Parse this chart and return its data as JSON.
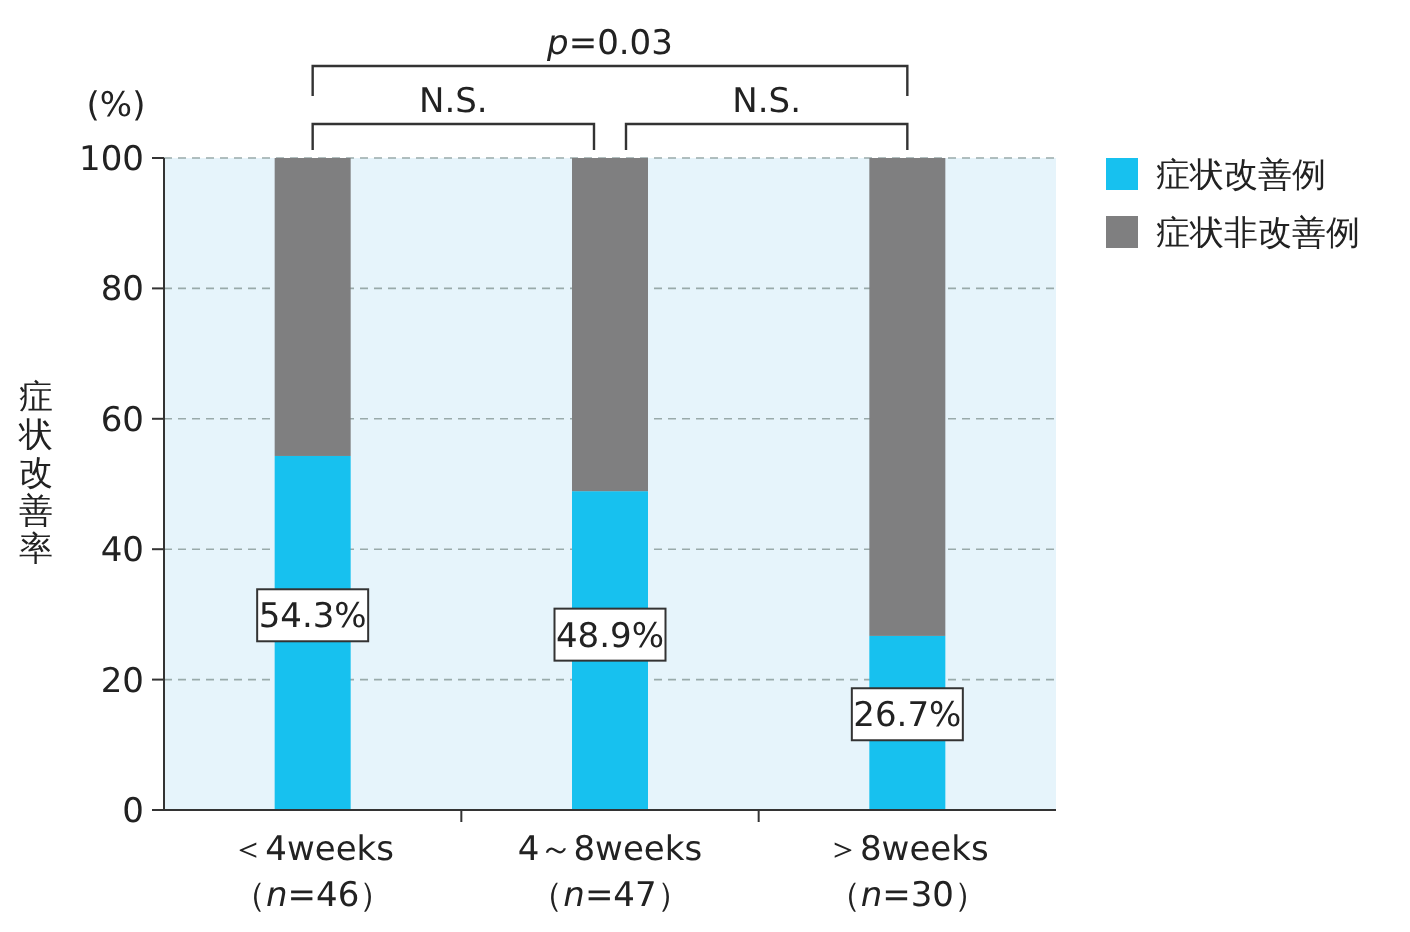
{
  "chart_data": {
    "type": "bar",
    "stacked": true,
    "ylabel": "症状改善率",
    "categories": [
      "＜4weeks\n（n=46）",
      "4～8weeks\n（n=47）",
      "＞8weeks\n（n=30）"
    ],
    "series": [
      {
        "name": "症状改善例",
        "color": "#17c1ef",
        "values": [
          54.3,
          48.9,
          26.7
        ],
        "value_labels": [
          "54.3%",
          "48.9%",
          "26.7%"
        ]
      },
      {
        "name": "症状非改善例",
        "color": "#7f7f80",
        "values": [
          45.7,
          51.1,
          73.3
        ]
      }
    ],
    "ylim": [
      0,
      100
    ],
    "yticks": [
      0,
      20,
      40,
      60,
      80,
      100
    ],
    "grid": "y",
    "legend": "right",
    "annotations": [
      "(%)",
      "N.S.",
      "N.S.",
      "p=0.03"
    ]
  }
}
